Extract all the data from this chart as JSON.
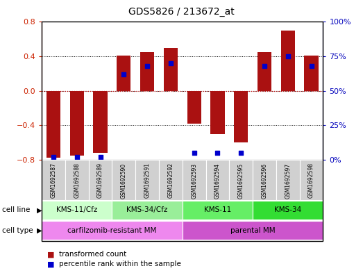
{
  "title": "GDS5826 / 213672_at",
  "samples": [
    "GSM1692587",
    "GSM1692588",
    "GSM1692589",
    "GSM1692590",
    "GSM1692591",
    "GSM1692592",
    "GSM1692593",
    "GSM1692594",
    "GSM1692595",
    "GSM1692596",
    "GSM1692597",
    "GSM1692598"
  ],
  "transformed_count": [
    -0.78,
    -0.75,
    -0.72,
    0.41,
    0.45,
    0.5,
    -0.38,
    -0.5,
    -0.6,
    0.45,
    0.7,
    0.41
  ],
  "percentile_rank": [
    2,
    2,
    2,
    62,
    68,
    70,
    5,
    5,
    5,
    68,
    75,
    68
  ],
  "bar_color": "#aa1111",
  "dot_color": "#0000cc",
  "ylim_left": [
    -0.8,
    0.8
  ],
  "ylim_right": [
    0,
    100
  ],
  "yticks_left": [
    -0.8,
    -0.4,
    0.0,
    0.4,
    0.8
  ],
  "yticks_right": [
    0,
    25,
    50,
    75,
    100
  ],
  "ytick_labels_right": [
    "0%",
    "25%",
    "50%",
    "75%",
    "100%"
  ],
  "cell_line_groups": [
    {
      "label": "KMS-11/Cfz",
      "start": 0,
      "end": 3,
      "color": "#ccffcc"
    },
    {
      "label": "KMS-34/Cfz",
      "start": 3,
      "end": 6,
      "color": "#88ee88"
    },
    {
      "label": "KMS-11",
      "start": 6,
      "end": 9,
      "color": "#55ee55"
    },
    {
      "label": "KMS-34",
      "start": 9,
      "end": 12,
      "color": "#44dd44"
    }
  ],
  "cell_type_groups": [
    {
      "label": "carfilzomib-resistant MM",
      "start": 0,
      "end": 6,
      "color": "#ee88ee"
    },
    {
      "label": "parental MM",
      "start": 6,
      "end": 12,
      "color": "#dd66dd"
    }
  ],
  "legend_bar_label": "transformed count",
  "legend_dot_label": "percentile rank within the sample",
  "axis_color_left": "#cc2200",
  "axis_color_right": "#0000bb",
  "grid_color": "#000000",
  "zero_line_color": "#cc0000",
  "sample_box_color": "#d0d0d0",
  "sample_box_edge": "#999999"
}
